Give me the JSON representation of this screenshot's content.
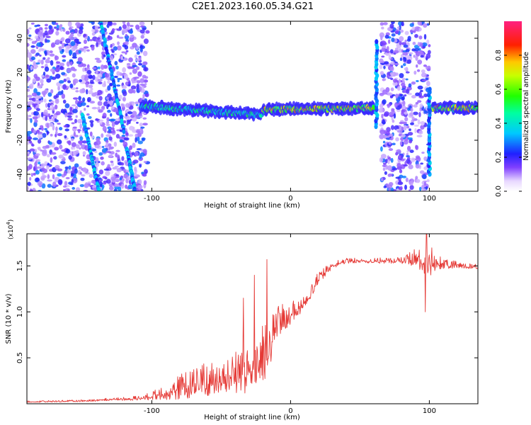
{
  "title": "C2E1.2023.160.05.34.G21",
  "chart_data": [
    {
      "type": "heatmap",
      "name": "spectrogram",
      "xlabel": "Height of straight line (km)",
      "ylabel": "Frequency (Hz)",
      "xlim": [
        -190,
        135
      ],
      "ylim": [
        -50,
        50
      ],
      "xticks": [
        -100,
        0,
        100
      ],
      "xtick_labels": [
        "-100",
        "0",
        "100"
      ],
      "yticks": [
        -40,
        -20,
        0,
        20,
        40
      ],
      "ytick_labels": [
        "-40",
        "-20",
        "0",
        "20",
        "40"
      ],
      "colorbar": {
        "label": "Normalized spectral amplitude",
        "range": [
          0,
          1
        ],
        "ticks": [
          0.0,
          0.2,
          0.4,
          0.6,
          0.8
        ],
        "tick_labels": [
          "0.0",
          "0.2",
          "0.4",
          "0.6",
          "0.8"
        ],
        "colormap": "rainbow (white-violet-blue-cyan-green-yellow-red-magenta)"
      },
      "features": [
        {
          "kind": "noise_band",
          "x_range": [
            -190,
            -103
          ],
          "amplitude": 0.25
        },
        {
          "kind": "noise_band",
          "x_range": [
            65,
            100
          ],
          "amplitude": 0.25
        },
        {
          "kind": "diagonal_trace",
          "x": [
            -150,
            -138
          ],
          "y": [
            -5,
            -50
          ],
          "amplitude": 0.3
        },
        {
          "kind": "diagonal_trace",
          "x": [
            -137,
            -120
          ],
          "y": [
            50,
            -15
          ],
          "amplitude": 0.3
        },
        {
          "kind": "diagonal_trace",
          "x": [
            -118,
            -112
          ],
          "y": [
            -25,
            -50
          ],
          "amplitude": 0.3
        },
        {
          "kind": "carrier_line",
          "x_range": [
            -108,
            -20
          ],
          "y": [
            0,
            -5
          ],
          "amplitude": 0.5
        },
        {
          "kind": "carrier_line",
          "x_range": [
            -20,
            60
          ],
          "y": [
            -2,
            -1
          ],
          "amplitude": 0.75
        },
        {
          "kind": "carrier_line",
          "x_range": [
            102,
            135
          ],
          "y": [
            -1,
            -1
          ],
          "amplitude": 0.75
        },
        {
          "kind": "spike",
          "x": 62,
          "y_range": [
            -12,
            38
          ]
        },
        {
          "kind": "spike",
          "x": 100,
          "y_range": [
            -40,
            10
          ]
        }
      ]
    },
    {
      "type": "line",
      "name": "snr",
      "xlabel": "Height of straight line (km)",
      "ylabel": "SNR (10 * v/v)",
      "y_exponent_label": "(x10",
      "y_exponent": "4",
      "y_exponent_close": ")",
      "xlim": [
        -190,
        135
      ],
      "ylim": [
        0,
        1.85
      ],
      "xticks": [
        -100,
        0,
        100
      ],
      "xtick_labels": [
        "-100",
        "0",
        "100"
      ],
      "yticks": [
        0.5,
        1.0,
        1.5
      ],
      "ytick_labels": [
        "0.5",
        "1.0",
        "1.5"
      ],
      "color": "#e53935",
      "envelope": {
        "x": [
          -190,
          -150,
          -120,
          -105,
          -95,
          -80,
          -60,
          -40,
          -30,
          -20,
          -15,
          -10,
          0,
          10,
          20,
          30,
          40,
          60,
          80,
          95,
          100,
          105,
          120,
          135
        ],
        "base": [
          0.02,
          0.03,
          0.05,
          0.06,
          0.1,
          0.15,
          0.22,
          0.28,
          0.35,
          0.4,
          0.55,
          0.85,
          0.95,
          1.1,
          1.35,
          1.5,
          1.55,
          1.55,
          1.55,
          1.55,
          1.55,
          1.52,
          1.5,
          1.48
        ],
        "noise": [
          0.01,
          0.01,
          0.02,
          0.03,
          0.08,
          0.15,
          0.2,
          0.25,
          0.35,
          0.4,
          0.3,
          0.2,
          0.12,
          0.1,
          0.08,
          0.04,
          0.03,
          0.03,
          0.04,
          0.15,
          0.35,
          0.08,
          0.04,
          0.03
        ]
      },
      "peaks": [
        {
          "x": -26,
          "y": 1.4
        },
        {
          "x": -17,
          "y": 1.57
        },
        {
          "x": -34,
          "y": 1.15
        },
        {
          "x": 98,
          "y": 1.85
        },
        {
          "x": 97,
          "y": 1.0
        }
      ]
    }
  ]
}
